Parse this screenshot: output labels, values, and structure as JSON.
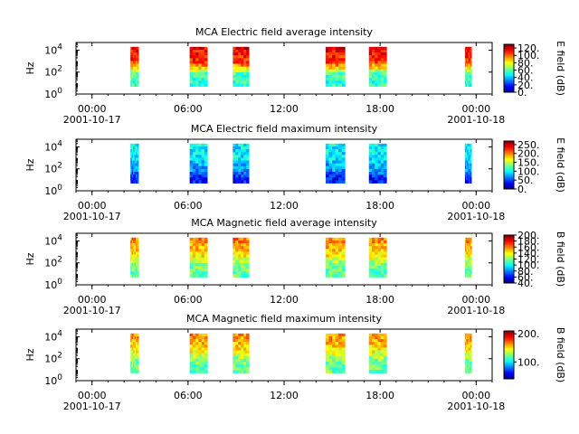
{
  "figure": {
    "title": "",
    "shared_time_axis": {
      "ticks": [
        "00:00",
        "06:00",
        "12:00",
        "18:00",
        "00:00"
      ],
      "tick_hours": [
        0,
        6,
        12,
        18,
        24
      ],
      "start_date": "2001-10-17",
      "end_date": "2001-10-18",
      "range_hours": [
        -1,
        25
      ],
      "minor_tick_step_hours": 1
    }
  },
  "chart_data": [
    {
      "type": "heatmap",
      "title": "MCA  Electric field average intensity",
      "ylabel": "Hz",
      "yscale": "log",
      "yticks": [
        "10^0",
        "10^2",
        "10^4"
      ],
      "ylim": [
        1,
        50000
      ],
      "colorbar": {
        "label": "E field (dB)",
        "ticks": [
          "0.",
          "20.",
          "40.",
          "60.",
          "80.",
          "100.",
          "120."
        ],
        "range": [
          0,
          130
        ]
      },
      "data_intervals_hours": [
        [
          2.4,
          2.9
        ],
        [
          6.1,
          7.2
        ],
        [
          8.8,
          9.8
        ],
        [
          14.6,
          15.8
        ],
        [
          17.3,
          18.4
        ],
        [
          23.3,
          23.7
        ]
      ],
      "level_profile_db": [
        [
          10,
          55
        ],
        [
          30,
          60
        ],
        [
          60,
          105
        ],
        [
          100,
          117
        ]
      ]
    },
    {
      "type": "heatmap",
      "title": "MCA  Electric field maximum intensity",
      "ylabel": "Hz",
      "yscale": "log",
      "yticks": [
        "10^0",
        "10^2",
        "10^4"
      ],
      "ylim": [
        1,
        50000
      ],
      "colorbar": {
        "label": "E field (dB)",
        "ticks": [
          "0.",
          "50.",
          "100.",
          "150.",
          "200.",
          "250."
        ],
        "range": [
          0,
          270
        ]
      },
      "data_intervals_hours": [
        [
          2.4,
          2.9
        ],
        [
          6.1,
          7.2
        ],
        [
          8.8,
          9.8
        ],
        [
          14.6,
          15.8
        ],
        [
          17.3,
          18.4
        ],
        [
          23.3,
          23.7
        ]
      ],
      "level_profile_db": [
        [
          10,
          40
        ],
        [
          30,
          70
        ],
        [
          60,
          95
        ],
        [
          100,
          100
        ]
      ]
    },
    {
      "type": "heatmap",
      "title": "MCA  Magnetic field average intensity",
      "ylabel": "Hz",
      "yscale": "log",
      "yticks": [
        "10^0",
        "10^2",
        "10^4"
      ],
      "ylim": [
        1,
        50000
      ],
      "colorbar": {
        "label": "B field (dB)",
        "ticks": [
          "40.",
          "60.",
          "80.",
          "100.",
          "120.",
          "140.",
          "160.",
          "180.",
          "200."
        ],
        "range": [
          40,
          200
        ]
      },
      "data_intervals_hours": [
        [
          2.4,
          2.9
        ],
        [
          6.1,
          7.2
        ],
        [
          8.8,
          9.8
        ],
        [
          14.6,
          15.8
        ],
        [
          17.3,
          18.4
        ],
        [
          23.3,
          23.7
        ]
      ],
      "level_profile_db": [
        [
          10,
          115
        ],
        [
          30,
          120
        ],
        [
          60,
          145
        ],
        [
          100,
          160
        ]
      ]
    },
    {
      "type": "heatmap",
      "title": "MCA  Magnetic field maximum intensity",
      "ylabel": "Hz",
      "yscale": "log",
      "yticks": [
        "10^0",
        "10^2",
        "10^4"
      ],
      "ylim": [
        1,
        50000
      ],
      "colorbar": {
        "label": "B field (dB)",
        "ticks": [
          "100.",
          "200."
        ],
        "range": [
          40,
          210
        ]
      },
      "data_intervals_hours": [
        [
          2.4,
          2.9
        ],
        [
          6.1,
          7.2
        ],
        [
          8.8,
          9.8
        ],
        [
          14.6,
          15.8
        ],
        [
          17.3,
          18.4
        ],
        [
          23.3,
          23.7
        ]
      ],
      "level_profile_db": [
        [
          10,
          120
        ],
        [
          30,
          125
        ],
        [
          60,
          150
        ],
        [
          100,
          165
        ]
      ]
    }
  ]
}
